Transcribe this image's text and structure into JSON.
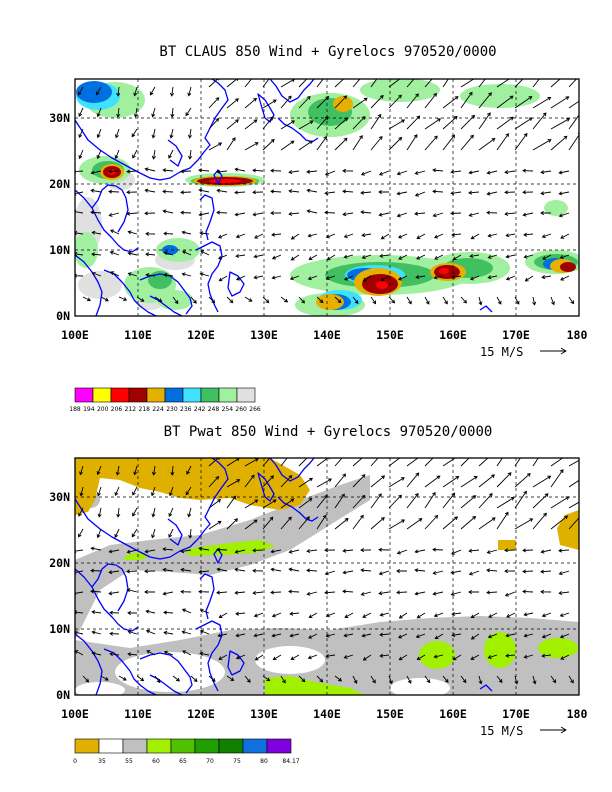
{
  "panels": [
    {
      "id": "claus",
      "title": "BT CLAUS 850 Wind + Gyrelocs 970520/0000",
      "reference_vector": "15 M/S",
      "colorbar": {
        "colors": [
          "#ff00ff",
          "#ffff00",
          "#ff0000",
          "#a00000",
          "#e6b000",
          "#0070e0",
          "#40e0ff",
          "#40c060",
          "#a0f0a0",
          "#e0e0e0"
        ],
        "labels": [
          "188",
          "194",
          "200",
          "206",
          "212",
          "218",
          "224",
          "230",
          "236",
          "242",
          "248",
          "254",
          "260",
          "266"
        ]
      }
    },
    {
      "id": "pwat",
      "title": "BT Pwat 850 Wind + Gyrelocs 970520/0000",
      "reference_vector": "15 M/S",
      "colorbar": {
        "colors": [
          "#e0b000",
          "#ffffff",
          "#c0c0c0",
          "#a0f000",
          "#50c000",
          "#20a000",
          "#108000",
          "#1070e0",
          "#8000e0"
        ],
        "labels": [
          "0",
          "35",
          "55",
          "60",
          "65",
          "70",
          "75",
          "80",
          "84.17"
        ]
      }
    }
  ],
  "map": {
    "lon_labels": [
      "100E",
      "110E",
      "120E",
      "130E",
      "140E",
      "150E",
      "160E",
      "170E",
      "180"
    ],
    "lon_values": [
      100,
      110,
      120,
      130,
      140,
      150,
      160,
      170,
      180
    ],
    "lat_labels": [
      "0N",
      "10N",
      "20N",
      "30N"
    ],
    "lat_values": [
      0,
      10,
      20,
      30
    ],
    "lat_range": [
      0,
      36
    ],
    "lon_range": [
      100,
      180
    ]
  },
  "colors": {
    "coast": "#0000ff",
    "frame": "#000000"
  }
}
